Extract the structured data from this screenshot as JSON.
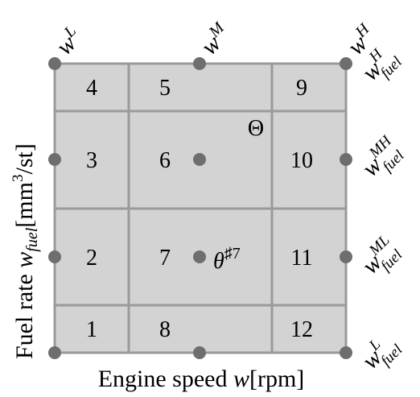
{
  "diagram": {
    "regions": [
      "1",
      "2",
      "3",
      "4",
      "5",
      "6",
      "7",
      "8",
      "9",
      "10",
      "11",
      "12"
    ],
    "top_speed_labels": [
      {
        "base": "w",
        "sup": "L"
      },
      {
        "base": "w",
        "sup": "M"
      },
      {
        "base": "w",
        "sup": "H"
      }
    ],
    "right_fuel_labels": [
      {
        "base": "w",
        "sup": "H",
        "sub": "fuel"
      },
      {
        "base": "w",
        "sup": "MH",
        "sub": "fuel"
      },
      {
        "base": "w",
        "sup": "ML",
        "sub": "fuel"
      },
      {
        "base": "w",
        "sup": "L",
        "sub": "fuel"
      }
    ],
    "theta_label": "Θ",
    "theta_point": {
      "base": "θ",
      "sup": "♯7"
    },
    "x_axis_label": {
      "prefix": "Engine speed ",
      "var": "w",
      "unit": "[rpm]"
    },
    "y_axis_label": {
      "prefix": "Fuel rate ",
      "var": "w",
      "sub": "fuel",
      "unit_pre": "[mm",
      "unit_sup": "3",
      "unit_post": "/st]"
    },
    "colors": {
      "fill": "#d3d3d3",
      "grid": "#9a9a9a",
      "dot": "#6e6e6e"
    }
  }
}
